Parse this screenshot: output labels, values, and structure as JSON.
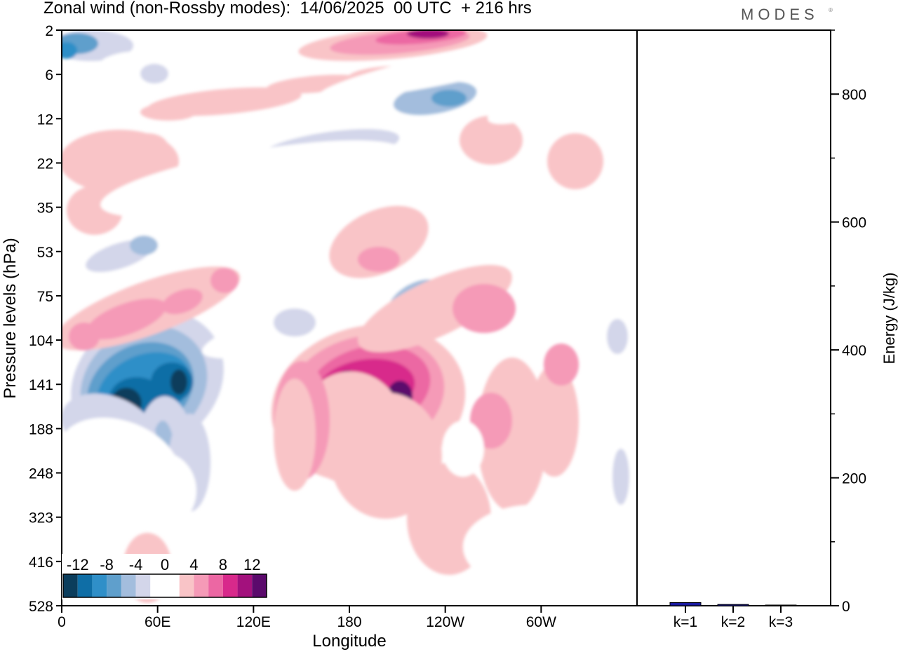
{
  "header": {
    "title": "Zonal wind (non-Rossby modes):  14/06/2025  00 UTC  + 216 hrs",
    "brand": "MODES",
    "brand_mark": "®"
  },
  "chart_data": [
    {
      "type": "heatmap",
      "title": "Zonal wind (non-Rossby modes):  14/06/2025  00 UTC  + 216 hrs",
      "xlabel": "Longitude",
      "ylabel": "Pressure levels (hPa)",
      "x_ticks": [
        "0",
        "60E",
        "120E",
        "180",
        "120W",
        "60W"
      ],
      "x_tick_values": [
        0,
        60,
        120,
        180,
        240,
        300
      ],
      "xlim": [
        0,
        360
      ],
      "y_ticks": [
        "2",
        "6",
        "12",
        "22",
        "35",
        "53",
        "75",
        "104",
        "141",
        "188",
        "248",
        "323",
        "416",
        "528"
      ],
      "colorbar": {
        "tick_labels": [
          "-12",
          "-8",
          "-4",
          "0",
          "4",
          "8",
          "12"
        ],
        "levels": [
          -14,
          -12,
          -10,
          -8,
          -6,
          -4,
          -2,
          2,
          4,
          6,
          8,
          10,
          12,
          14
        ],
        "colors": [
          "#0b3d5c",
          "#0f6ea6",
          "#2f8fc8",
          "#5f9fcc",
          "#a3bddd",
          "#d3d6ea",
          "#ffffff",
          "#ffffff",
          "#f9c4c7",
          "#f59ab7",
          "#ec67a3",
          "#d8298b",
          "#a3117d",
          "#5b0a6c"
        ]
      },
      "features": [
        {
          "lon": 48,
          "level": "141",
          "value": -14
        },
        {
          "lon": 65,
          "level": "141",
          "value": -13
        },
        {
          "lon": 160,
          "level": "141",
          "value": 10
        },
        {
          "lon": 210,
          "level": "141",
          "value": 11
        },
        {
          "lon": 225,
          "level": "2",
          "value": 12
        },
        {
          "lon": 215,
          "level": "6",
          "value": 10
        },
        {
          "lon": 8,
          "level": "2",
          "value": -10
        },
        {
          "lon": 65,
          "level": "75",
          "value": 6
        },
        {
          "lon": 270,
          "level": "75",
          "value": 6
        },
        {
          "lon": 200,
          "level": "53",
          "value": 5
        }
      ]
    },
    {
      "type": "bar",
      "categories": [
        "k=1",
        "k=2",
        "k=3"
      ],
      "values": [
        5,
        2,
        1
      ],
      "ylabel": "Energy (J/kg)",
      "ylim": [
        0,
        900
      ],
      "y_ticks": [
        0,
        200,
        400,
        600,
        800
      ],
      "bar_color": "#1a1aa0"
    }
  ]
}
